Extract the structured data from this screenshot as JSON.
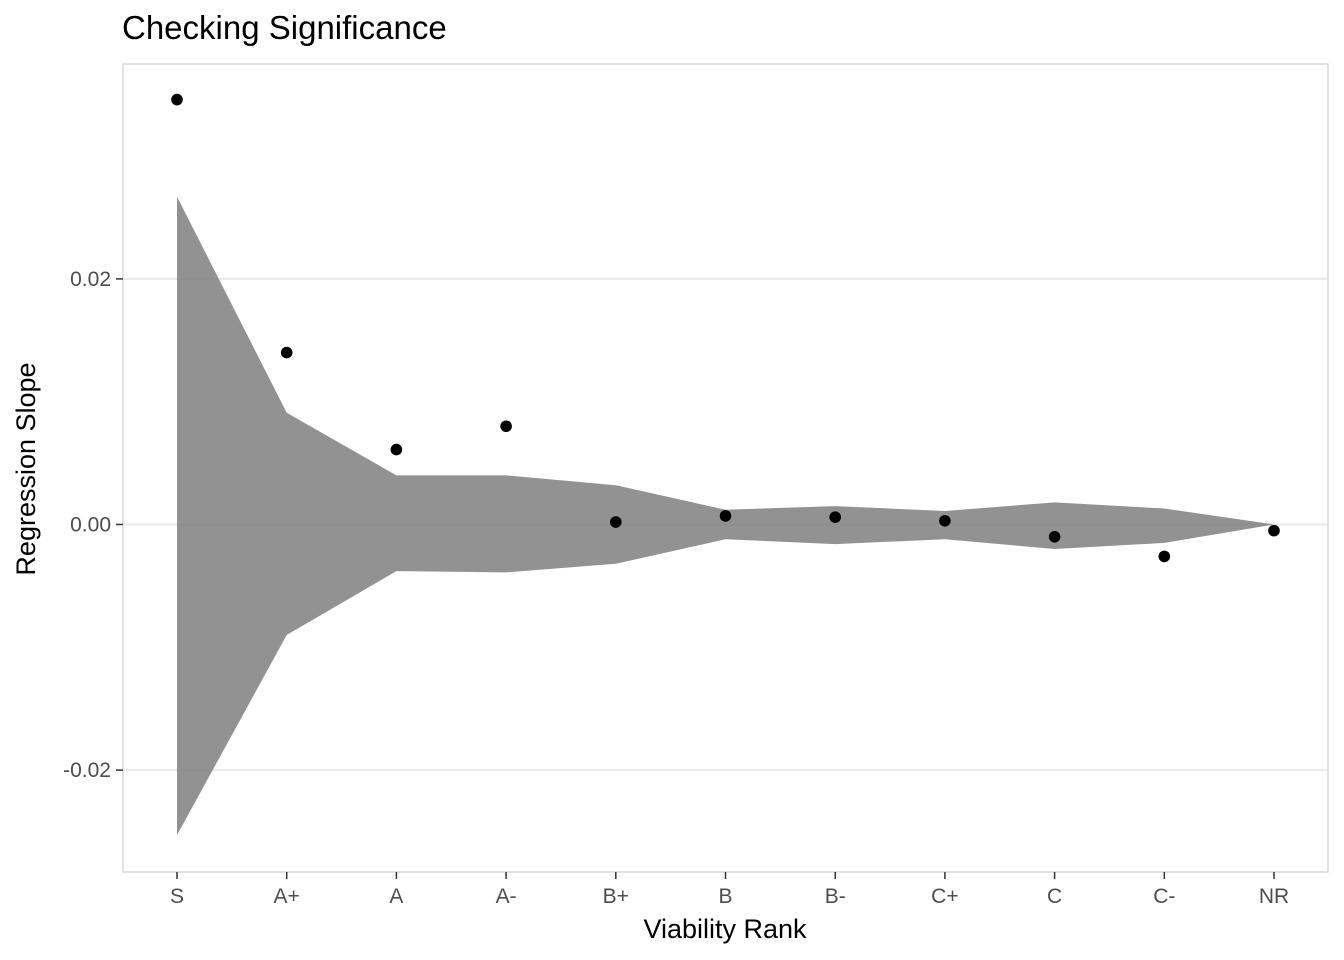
{
  "chart_data": {
    "type": "scatter",
    "title": "Checking Significance",
    "xlabel": "Viability Rank",
    "ylabel": "Regression Slope",
    "categories": [
      "S",
      "A+",
      "A",
      "A-",
      "B+",
      "B",
      "B-",
      "C+",
      "C",
      "C-",
      "NR"
    ],
    "points": [
      0.0346,
      0.014,
      0.0061,
      0.008,
      0.0002,
      0.0007,
      0.0006,
      0.0003,
      -0.001,
      -0.0026,
      -0.0005
    ],
    "band": {
      "upper": [
        0.0267,
        0.0091,
        0.004,
        0.004,
        0.0032,
        0.0012,
        0.0015,
        0.0011,
        0.0018,
        0.0013,
        0.0
      ],
      "lower": [
        -0.0253,
        -0.009,
        -0.0038,
        -0.0039,
        -0.0032,
        -0.0012,
        -0.0016,
        -0.0012,
        -0.002,
        -0.0015,
        0.0
      ]
    },
    "ylim": [
      -0.0283,
      0.0375
    ],
    "yticks": [
      -0.02,
      0.0,
      0.02
    ],
    "ytick_labels": [
      "-0.02",
      "0.00",
      "0.02"
    ],
    "grid": true,
    "legend": "none",
    "colors": {
      "band": "#7f7f7f",
      "point": "#000000",
      "grid": "#ebebeb",
      "panel_border": "#d9d9d9",
      "axis_text": "#4d4d4d"
    }
  }
}
